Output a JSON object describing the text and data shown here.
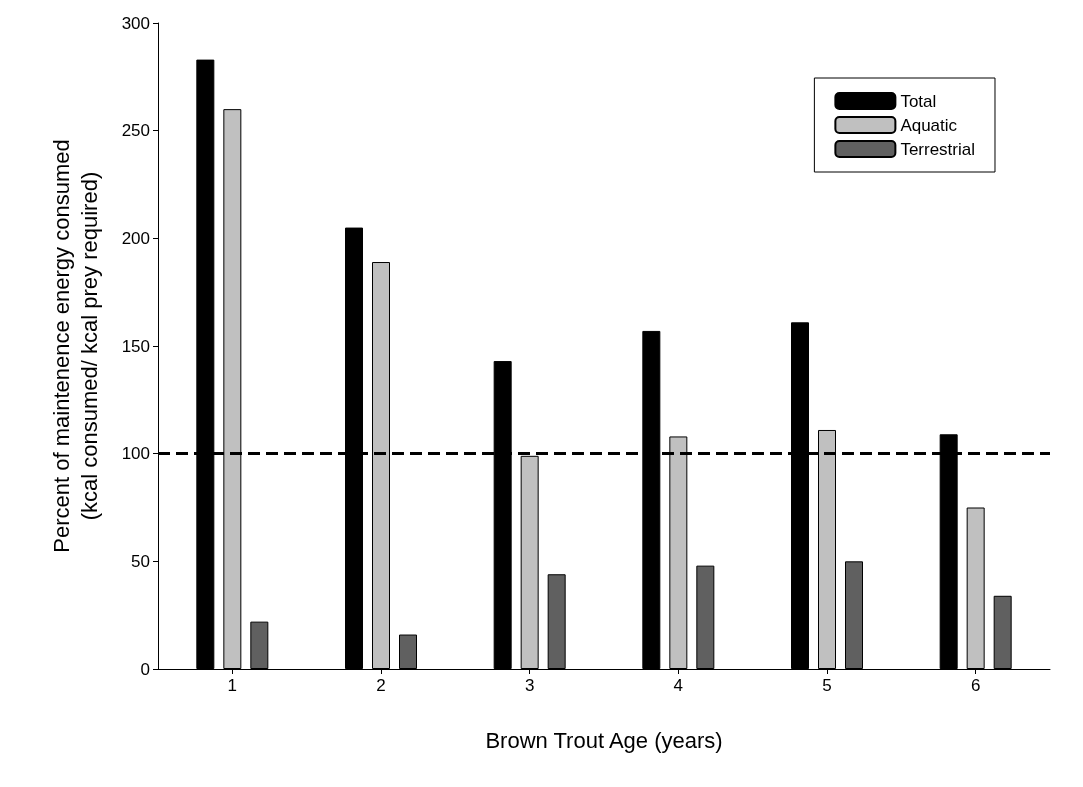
{
  "chart_data": {
    "type": "bar",
    "xlabel": "Brown Trout Age (years)",
    "ylabel": "Percent of maintenence energy consumed\n(kcal consumed/ kcal prey required)",
    "categories": [
      "1",
      "2",
      "3",
      "4",
      "5",
      "6"
    ],
    "series": [
      {
        "name": "Total",
        "color": "#000000",
        "values": [
          283,
          205,
          143,
          157,
          161,
          109
        ]
      },
      {
        "name": "Aquatic",
        "color": "#c0c0c0",
        "values": [
          260,
          189,
          99,
          108,
          111,
          75
        ]
      },
      {
        "name": "Terrestrial",
        "color": "#606060",
        "values": [
          22,
          16,
          44,
          48,
          50,
          34
        ]
      }
    ],
    "ylim": [
      0,
      300
    ],
    "yticks": [
      0,
      50,
      100,
      150,
      200,
      250,
      300
    ],
    "grid": false,
    "legend": "top right",
    "ref_lines": [
      {
        "axis": "y",
        "value": 100,
        "label": null,
        "line_style": "dashed",
        "color": "#000000"
      }
    ]
  }
}
